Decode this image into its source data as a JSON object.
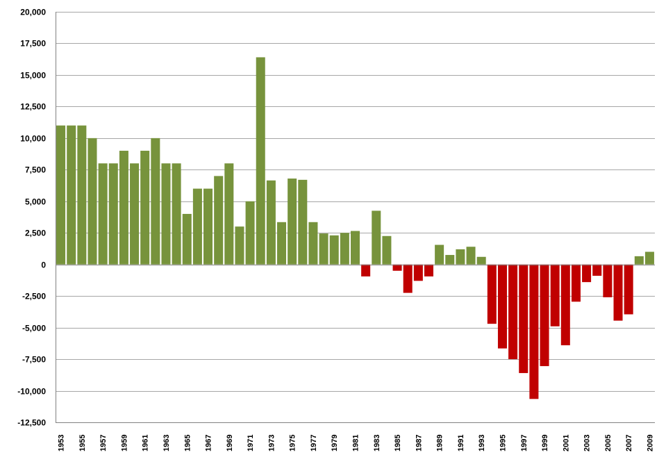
{
  "chart_data": {
    "type": "bar",
    "title": "",
    "xlabel": "",
    "ylabel": "",
    "ylim": [
      -12500,
      20000
    ],
    "grid": true,
    "legend": "none",
    "colors": {
      "positive": "#77933C",
      "negative": "#C00000",
      "grid": "#A6A6A6",
      "axis": "#808080"
    },
    "yticks": [
      {
        "value": 20000,
        "label": "20,000"
      },
      {
        "value": 17500,
        "label": "17,500"
      },
      {
        "value": 15000,
        "label": "15,000"
      },
      {
        "value": 12500,
        "label": "12,500"
      },
      {
        "value": 10000,
        "label": "10,000"
      },
      {
        "value": 7500,
        "label": "7,500"
      },
      {
        "value": 5000,
        "label": "5,000"
      },
      {
        "value": 2500,
        "label": "2,500"
      },
      {
        "value": 0,
        "label": "0"
      },
      {
        "value": -2500,
        "label": "-2,500"
      },
      {
        "value": -5000,
        "label": "-5,000"
      },
      {
        "value": -7500,
        "label": "-7,500"
      },
      {
        "value": -10000,
        "label": "-10,000"
      },
      {
        "value": -12500,
        "label": "-12,500"
      }
    ],
    "xtick_labels": [
      "1953",
      "1955",
      "1957",
      "1959",
      "1961",
      "1963",
      "1965",
      "1967",
      "1969",
      "1971",
      "1973",
      "1975",
      "1977",
      "1979",
      "1981",
      "1983",
      "1985",
      "1987",
      "1989",
      "1991",
      "1993",
      "1995",
      "1997",
      "1999",
      "2001",
      "2003",
      "2005",
      "2007",
      "2009"
    ],
    "categories": [
      "1953",
      "1954",
      "1955",
      "1956",
      "1957",
      "1958",
      "1959",
      "1960",
      "1961",
      "1962",
      "1963",
      "1964",
      "1965",
      "1966",
      "1967",
      "1968",
      "1969",
      "1970",
      "1971",
      "1972",
      "1973",
      "1974",
      "1975",
      "1976",
      "1977",
      "1978",
      "1979",
      "1980",
      "1981",
      "1982",
      "1983",
      "1984",
      "1985",
      "1986",
      "1987",
      "1988",
      "1989",
      "1990",
      "1991",
      "1992",
      "1993",
      "1994",
      "1995",
      "1996",
      "1997",
      "1998",
      "1999",
      "2000",
      "2001",
      "2002",
      "2003",
      "2004",
      "2005",
      "2006",
      "2007",
      "2008",
      "2009"
    ],
    "values": [
      11000,
      11000,
      11000,
      10000,
      8000,
      8000,
      9000,
      8000,
      9000,
      10000,
      8000,
      8000,
      4000,
      6000,
      6000,
      7000,
      8000,
      3000,
      5000,
      16400,
      6650,
      3350,
      6800,
      6700,
      3350,
      2450,
      2300,
      2500,
      2650,
      -950,
      4250,
      2250,
      -500,
      -2250,
      -1300,
      -950,
      1550,
      750,
      1200,
      1400,
      600,
      -4700,
      -6650,
      -7500,
      -8600,
      -10650,
      -8050,
      -4900,
      -6400,
      -2950,
      -1400,
      -900,
      -2600,
      -4450,
      -3950,
      650,
      1000
    ]
  }
}
